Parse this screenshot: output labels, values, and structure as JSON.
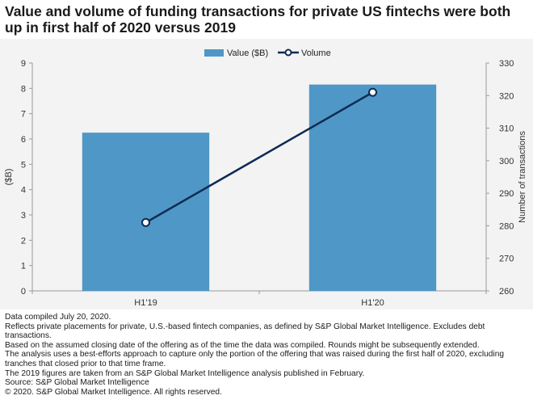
{
  "title": "Value and volume of funding transactions for private US fintechs were both up in first half of 2020 versus 2019",
  "colors": {
    "bar": "#4f97c6",
    "line": "#0e2b53",
    "plot_bg": "#f3f3f3",
    "axis": "#9a9a9a"
  },
  "chart_data": {
    "type": "bar",
    "categories": [
      "H1'19",
      "H1'20"
    ],
    "series": [
      {
        "name": "Value ($B)",
        "type": "bar",
        "axis": "left",
        "values": [
          6.25,
          8.15
        ]
      },
      {
        "name": "Volume",
        "type": "line",
        "axis": "right",
        "values": [
          281,
          321
        ]
      }
    ],
    "ylabel_left": "($B)",
    "ylabel_right": "Number of transactions",
    "ylim_left": [
      0,
      9
    ],
    "ylim_right": [
      260,
      330
    ],
    "yticks_left": [
      "0",
      "1",
      "2",
      "3",
      "4",
      "5",
      "6",
      "7",
      "8",
      "9"
    ],
    "yticks_right": [
      "260",
      "270",
      "280",
      "290",
      "300",
      "310",
      "320",
      "330"
    ],
    "legend": [
      "Value ($B)",
      "Volume"
    ],
    "legend_position": "top"
  },
  "notes": [
    "Data compiled July 20, 2020.",
    "Reflects private placements for private, U.S.-based fintech companies, as defined by S&P Global Market Intelligence. Excludes debt transactions.",
    "Based on the assumed closing date of the offering as of the time the data was compiled. Rounds might be subsequently extended.",
    "The analysis uses a best-efforts approach to capture only the portion of the offering that was raised during the first half of 2020, excluding tranches that closed prior to that time frame.",
    "The 2019 figures are taken from an S&P Global Market Intelligence analysis published in February.",
    "Source: S&P Global Market Intelligence",
    "© 2020. S&P Global Market Intelligence. All rights reserved."
  ]
}
